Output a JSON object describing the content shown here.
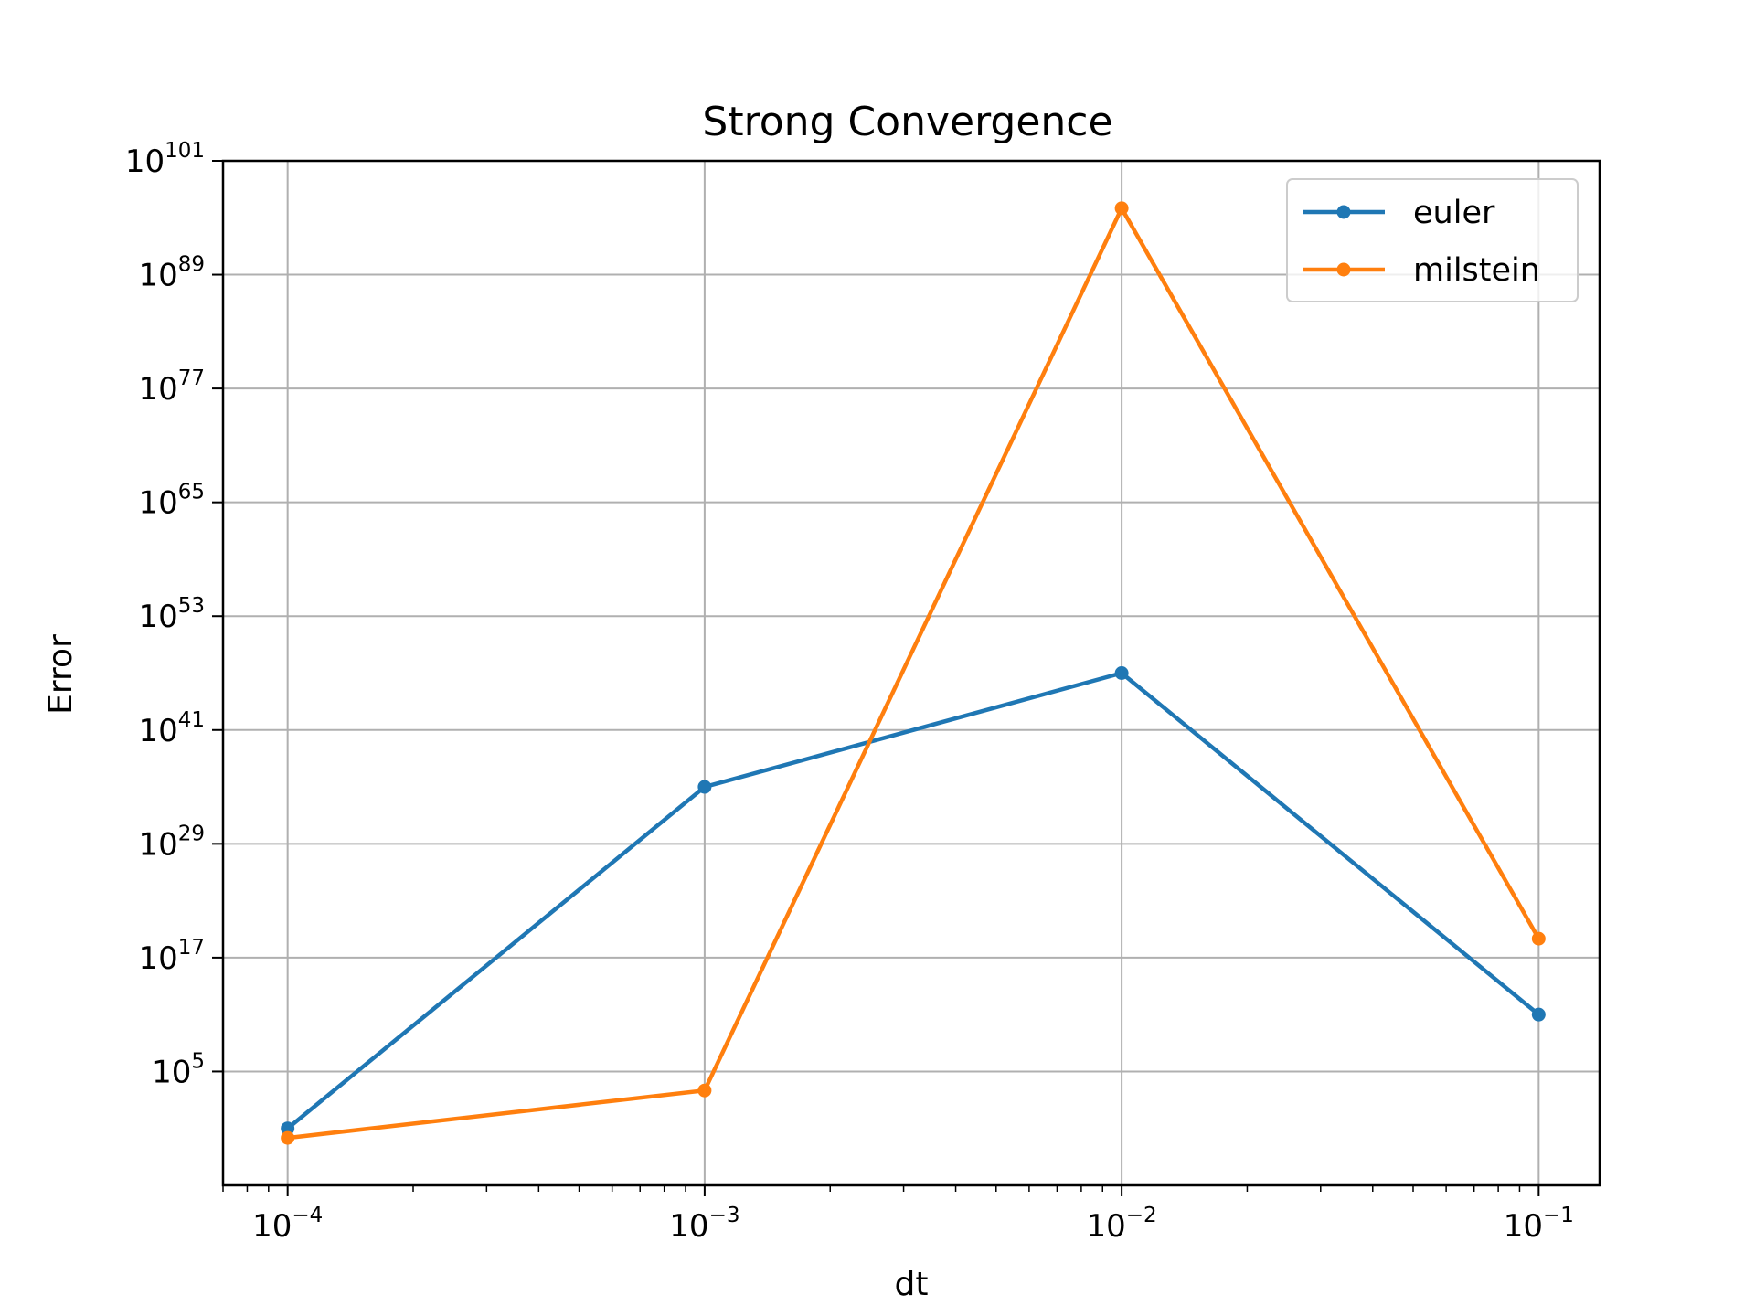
{
  "chart_data": {
    "type": "line",
    "title": "Strong Convergence",
    "xlabel": "dt",
    "ylabel": "Error",
    "xscale": "log",
    "yscale": "log",
    "xlim": [
      7e-05,
      0.14
    ],
    "ylim": [
      1e-07,
      1e+101
    ],
    "x": [
      0.0001,
      0.001,
      0.01,
      0.1
    ],
    "xticks": [
      {
        "value": 0.0001,
        "base": "10",
        "exp": "−4"
      },
      {
        "value": 0.001,
        "base": "10",
        "exp": "−3"
      },
      {
        "value": 0.01,
        "base": "10",
        "exp": "−2"
      },
      {
        "value": 0.1,
        "base": "10",
        "exp": "−1"
      }
    ],
    "yticks": [
      {
        "value": 100000.0,
        "base": "10",
        "exp": "5"
      },
      {
        "value": 1e+17,
        "base": "10",
        "exp": "17"
      },
      {
        "value": 1e+29,
        "base": "10",
        "exp": "29"
      },
      {
        "value": 1e+41,
        "base": "10",
        "exp": "41"
      },
      {
        "value": 1e+53,
        "base": "10",
        "exp": "53"
      },
      {
        "value": 1e+65,
        "base": "10",
        "exp": "65"
      },
      {
        "value": 1e+77,
        "base": "10",
        "exp": "77"
      },
      {
        "value": 1e+89,
        "base": "10",
        "exp": "89"
      },
      {
        "value": 1e+101,
        "base": "10",
        "exp": "101"
      }
    ],
    "grid": true,
    "legend_position": "top-right",
    "series": [
      {
        "name": "euler",
        "color": "#1f77b4",
        "values": [
          0.1,
          1e+35,
          1e+47,
          100000000000.0
        ]
      },
      {
        "name": "milstein",
        "color": "#ff7f0e",
        "values": [
          0.01,
          1000.0,
          1e+96,
          1e+19
        ]
      }
    ]
  }
}
